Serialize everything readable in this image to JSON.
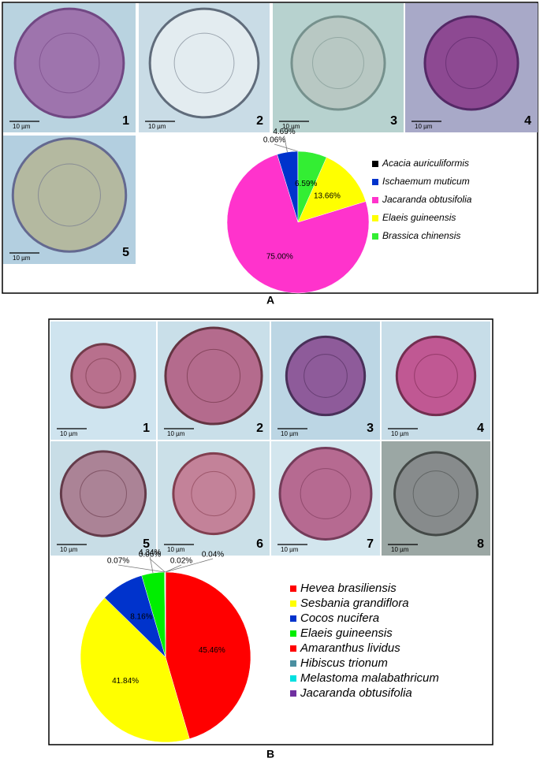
{
  "chart_data": [
    {
      "type": "pie",
      "categories": [
        "Acacia auriculiformis",
        "Ischaemum muticum",
        "Jacaranda obtusifolia",
        "Elaeis guineensis",
        "Brassica chinensis"
      ],
      "values": [
        0.06,
        4.69,
        75.0,
        13.66,
        6.59
      ],
      "value_labels": [
        "0.06%",
        "4.69%",
        "75.00%",
        "13.66%",
        "6.59%"
      ],
      "colors": [
        "#000000",
        "#0033cc",
        "#ff33cc",
        "#ffff00",
        "#33ee33"
      ],
      "direction": "counterclockwise",
      "legend": "right"
    },
    {
      "type": "pie",
      "categories": [
        "Hevea brasiliensis",
        "Sesbania grandiflora",
        "Cocos nucifera",
        "Elaeis guineensis",
        "Amaranthus lividus",
        "Hibiscus trionum",
        "Melastoma malabathricum",
        "Jacaranda obtusifolia"
      ],
      "values": [
        45.46,
        41.84,
        8.16,
        4.34,
        0.07,
        0.06,
        0.02,
        0.04
      ],
      "value_labels": [
        "45.46%",
        "41.84%",
        "8.16%",
        "4.34%",
        "0.07%",
        "0.06%",
        "0.02%",
        "0.04%"
      ],
      "colors": [
        "#ff0000",
        "#ffff00",
        "#0033cc",
        "#00ee00",
        "#ff0000",
        "#4a8fa0",
        "#00e0e0",
        "#7030a0"
      ],
      "direction": "clockwise",
      "legend": "right"
    }
  ],
  "figure": {
    "panels": [
      {
        "label": "A",
        "images": [
          {
            "number": "1",
            "scale": "10 µm"
          },
          {
            "number": "2",
            "scale": "10 µm"
          },
          {
            "number": "3",
            "scale": "10 µm"
          },
          {
            "number": "4",
            "scale": "10 µm"
          },
          {
            "number": "5",
            "scale": "10 µm"
          }
        ]
      },
      {
        "label": "B",
        "images": [
          {
            "number": "1",
            "scale": "10 µm"
          },
          {
            "number": "2",
            "scale": "10 µm"
          },
          {
            "number": "3",
            "scale": "10 µm"
          },
          {
            "number": "4",
            "scale": "10 µm"
          },
          {
            "number": "5",
            "scale": "10 µm"
          },
          {
            "number": "6",
            "scale": "10 µm"
          },
          {
            "number": "7",
            "scale": "10 µm"
          },
          {
            "number": "8",
            "scale": "10 µm"
          }
        ]
      }
    ]
  }
}
